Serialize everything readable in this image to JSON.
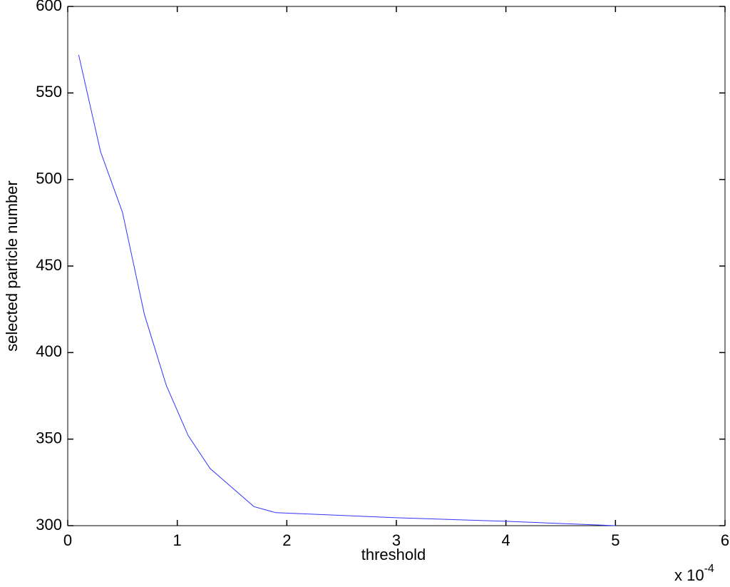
{
  "chart_data": {
    "type": "line",
    "xlabel": "threshold",
    "ylabel": "selected particle number",
    "x_multiplier": {
      "base": "x 10",
      "exponent": "-4"
    },
    "x": [
      0.1,
      0.3,
      0.5,
      0.7,
      0.9,
      1.1,
      1.3,
      1.5,
      1.7,
      1.9,
      3,
      4,
      5
    ],
    "series": [
      {
        "color": "#3333ff",
        "values": [
          572,
          516,
          481,
          422,
          381,
          352,
          333,
          322,
          311,
          307.5,
          304.6,
          302.5,
          300
        ]
      }
    ],
    "xlim": [
      0,
      6
    ],
    "xticks": [
      0,
      1,
      2,
      3,
      4,
      5,
      6
    ],
    "ylim": [
      300,
      600
    ],
    "yticks": [
      300,
      350,
      400,
      450,
      500,
      550,
      600
    ],
    "grid": false
  }
}
